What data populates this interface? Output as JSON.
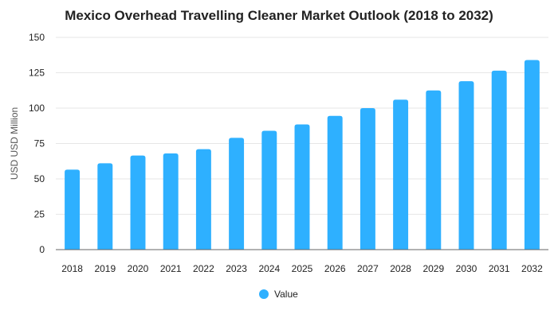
{
  "chart_data": {
    "type": "bar",
    "title": "Mexico Overhead Travelling Cleaner Market Outlook (2018 to 2032)",
    "xlabel": "",
    "ylabel": "USD USD Million",
    "categories": [
      "2018",
      "2019",
      "2020",
      "2021",
      "2022",
      "2023",
      "2024",
      "2025",
      "2026",
      "2027",
      "2028",
      "2029",
      "2030",
      "2031",
      "2032"
    ],
    "series": [
      {
        "name": "Value",
        "values": [
          56.5,
          61,
          66.5,
          68,
          71,
          79,
          84,
          88.5,
          94.5,
          100,
          106,
          112.5,
          119,
          126.5,
          134
        ]
      }
    ],
    "ylim": [
      0,
      150
    ],
    "yticks": [
      0,
      25,
      50,
      75,
      100,
      125,
      150
    ],
    "grid": true,
    "legend": "bottom-center",
    "colors": {
      "bar": "#2EB0FF",
      "grid": "#E6E6E6"
    }
  }
}
